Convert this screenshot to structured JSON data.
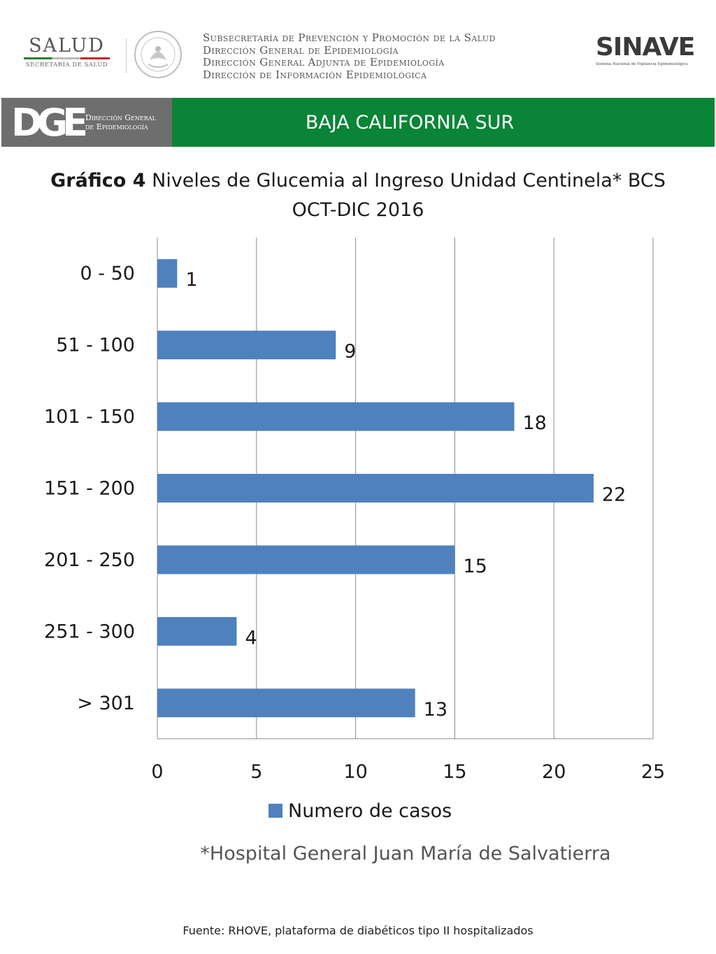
{
  "header": {
    "salud_logo": {
      "word": "SALUD",
      "subtitle": "SECRETARÍA DE SALUD"
    },
    "seal_icon": "mexican-coat-of-arms-seal",
    "institution_lines": [
      "Subsecretaría de Prevención y Promoción de la Salud",
      "Dirección General de Epidemiología",
      "Dirección General Adjunta de Epidemiología",
      "Dirección de Información Epidemiológica"
    ],
    "sinave_logo": {
      "word": "SINAVE",
      "subtitle": "Sistema Nacional de Vigilancia Epidemiológica"
    }
  },
  "banner": {
    "dge_letters": "DGE",
    "dge_text_line1": "Dirección General",
    "dge_text_line2": "de Epidemiología",
    "state": "BAJA CALIFORNIA SUR",
    "colors": {
      "left": "#6e6e6e",
      "right": "#0a8436"
    }
  },
  "chart_title": {
    "bold": "Gráfico 4",
    "rest": " Niveles de Glucemia al Ingreso Unidad Centinela* BCS",
    "line2": "OCT-DIC 2016"
  },
  "chart_data": {
    "type": "bar",
    "orientation": "horizontal",
    "title": "Gráfico 4 Niveles de Glucemia al Ingreso Unidad Centinela* BCS OCT-DIC 2016",
    "categories": [
      "0 - 50",
      "51 - 100",
      "101 - 150",
      "151 - 200",
      "201 - 250",
      "251 - 300",
      "> 301"
    ],
    "series": [
      {
        "name": "Numero de casos",
        "values": [
          1,
          9,
          18,
          22,
          15,
          4,
          13
        ],
        "color": "#4f81bd"
      }
    ],
    "xlim": [
      0,
      25
    ],
    "xticks": [
      0,
      5,
      10,
      15,
      20,
      25
    ],
    "xlabel": "",
    "ylabel": "",
    "grid": "vertical",
    "legend": "bottom",
    "data_labels": true
  },
  "footnote": "*Hospital General Juan María de Salvatierra",
  "source": "Fuente: RHOVE, plataforma de diabéticos tipo II hospitalizados"
}
